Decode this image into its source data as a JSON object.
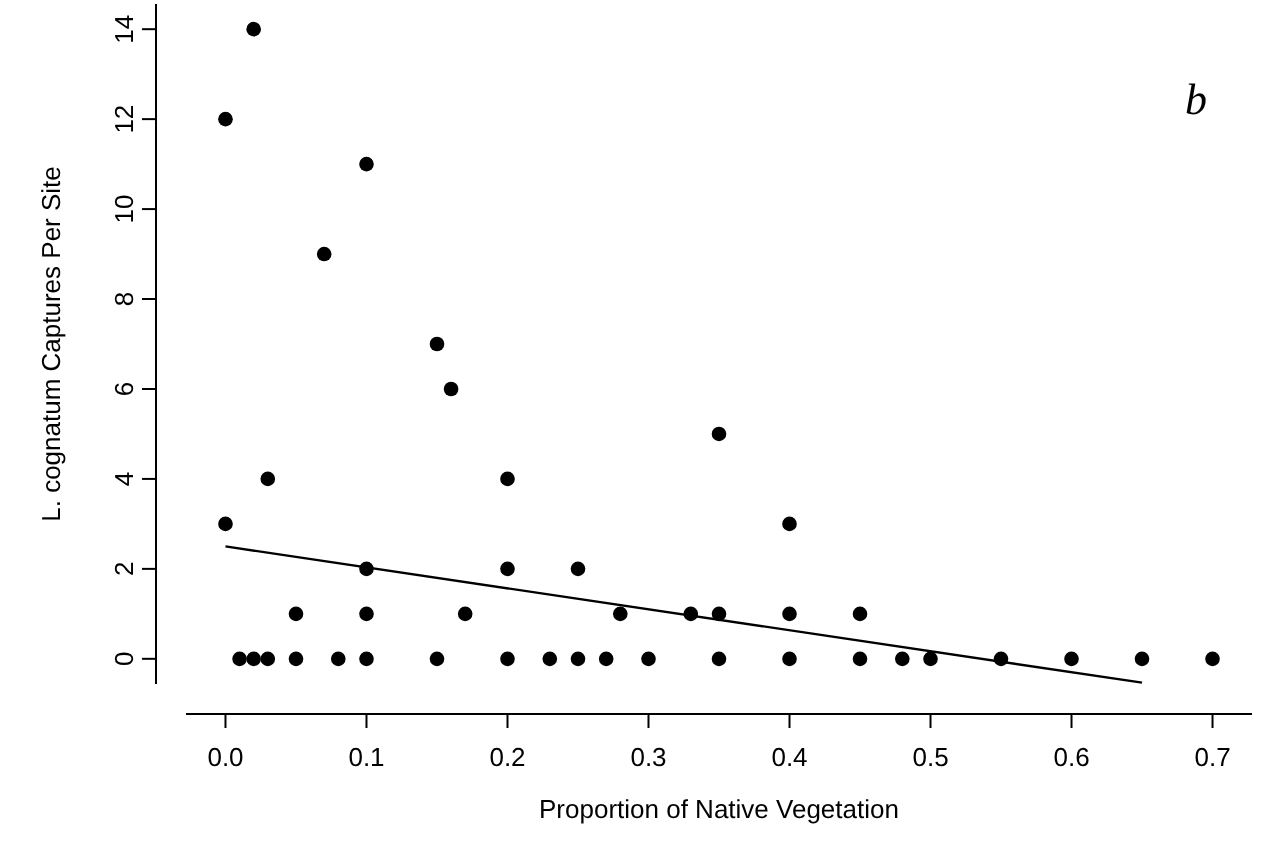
{
  "chart_data": {
    "type": "scatter",
    "xlabel": "Proportion of Native Vegetation",
    "ylabel": "L. cognatum Captures Per Site",
    "xlim": [
      -0.028,
      0.728
    ],
    "ylim": [
      -0.56,
      14.56
    ],
    "xticks": [
      {
        "value": 0,
        "label": "0.0"
      },
      0.1,
      0.2,
      0.3,
      0.4,
      0.5,
      0.6,
      0.7
    ],
    "yticks": [
      0,
      2,
      4,
      6,
      8,
      10,
      12,
      14
    ],
    "marker": "circle",
    "annotations": [
      "b"
    ],
    "series": [
      {
        "color": "#000000",
        "x": [
          0,
          0,
          0.02,
          0.01,
          0.02,
          0.03,
          0.03,
          0.05,
          0.05,
          0.08,
          0.07,
          0.1,
          0.1,
          0.1,
          0.1,
          0.15,
          0.15,
          0.16,
          0.17,
          0.2,
          0.2,
          0.2,
          0.23,
          0.25,
          0.25,
          0.27,
          0.28,
          0.3,
          0.33,
          0.35,
          0.35,
          0.35,
          0.4,
          0.4,
          0.4,
          0.45,
          0.45,
          0.48,
          0.5,
          0.55,
          0.6,
          0.65,
          0.7
        ],
        "values": [
          12,
          3,
          14,
          0,
          0,
          0,
          4,
          1,
          0,
          0,
          9,
          11,
          2,
          1,
          0,
          7,
          0,
          6,
          1,
          4,
          2,
          0,
          0,
          2,
          0,
          0,
          1,
          0,
          1,
          1,
          5,
          0,
          3,
          1,
          0,
          1,
          0,
          0,
          0,
          0,
          0,
          0,
          0
        ]
      },
      {
        "type": "line",
        "marker": "none",
        "color": "#000000",
        "x": [
          0,
          0.65
        ],
        "values": [
          2.5,
          -0.53
        ]
      }
    ]
  }
}
